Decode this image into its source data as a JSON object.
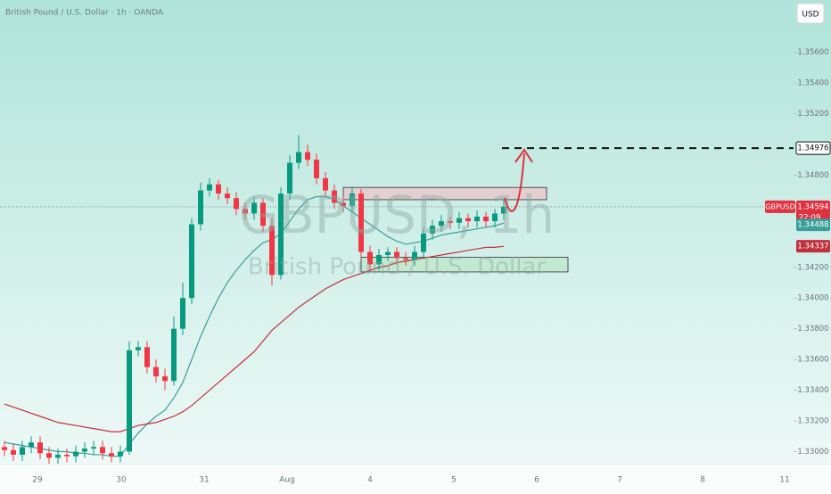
{
  "chart_data": {
    "type": "candlestick",
    "title": "British Pound / U.S. Dollar · 1h · OANDA",
    "watermark": "GBPUSD, 1h",
    "watermark_subtitle": "British Pound / U.S. Dollar",
    "currency": "USD",
    "symbol": "GBPUSD",
    "countdown": "22:09",
    "x_labels": [
      "29",
      "30",
      "31",
      "Aug",
      "4",
      "5",
      "6",
      "7",
      "8",
      "11"
    ],
    "up_color": "#089981",
    "down_color": "#f23645",
    "open": [
      1.3303,
      1.3301,
      1.3298,
      1.3303,
      1.3306,
      1.3299,
      1.3296,
      1.3298,
      1.3297,
      1.33,
      1.3302,
      1.3303,
      1.3299,
      1.3297,
      1.33,
      1.3366,
      1.3368,
      1.3355,
      1.3349,
      1.3346,
      1.338,
      1.34,
      1.3448,
      1.347,
      1.3474,
      1.3468,
      1.3465,
      1.3458,
      1.3455,
      1.3462,
      1.3447,
      1.3415,
      1.3468,
      1.3488,
      1.3495,
      1.349,
      1.3478,
      1.347,
      1.3462,
      1.346,
      1.3468,
      1.343,
      1.3422,
      1.3428,
      1.343,
      1.3426,
      1.3425,
      1.343,
      1.3442,
      1.3447,
      1.345,
      1.3449,
      1.3452,
      1.345,
      1.3453,
      1.345,
      1.3455
    ],
    "high": [
      1.3307,
      1.3305,
      1.3307,
      1.331,
      1.331,
      1.3303,
      1.3302,
      1.3302,
      1.3304,
      1.3306,
      1.3307,
      1.3307,
      1.3303,
      1.3304,
      1.3372,
      1.3372,
      1.3372,
      1.336,
      1.3354,
      1.3388,
      1.341,
      1.3452,
      1.3475,
      1.3478,
      1.3477,
      1.3472,
      1.3469,
      1.3462,
      1.3466,
      1.3465,
      1.3452,
      1.3472,
      1.3493,
      1.3506,
      1.35,
      1.3494,
      1.3482,
      1.3474,
      1.3466,
      1.3472,
      1.3471,
      1.3434,
      1.3432,
      1.3433,
      1.3433,
      1.343,
      1.3434,
      1.3446,
      1.3451,
      1.3454,
      1.3453,
      1.3456,
      1.3455,
      1.3457,
      1.3456,
      1.3458,
      1.3464
    ],
    "low": [
      1.3297,
      1.3294,
      1.3294,
      1.3299,
      1.3295,
      1.3292,
      1.3292,
      1.3293,
      1.3293,
      1.3296,
      1.3298,
      1.3295,
      1.3293,
      1.3293,
      1.3298,
      1.3362,
      1.3351,
      1.3345,
      1.334,
      1.3343,
      1.3376,
      1.3396,
      1.3444,
      1.3466,
      1.3464,
      1.3461,
      1.3454,
      1.3451,
      1.3451,
      1.3443,
      1.3408,
      1.3412,
      1.3464,
      1.3484,
      1.3486,
      1.3474,
      1.3466,
      1.3458,
      1.3456,
      1.3456,
      1.3426,
      1.3418,
      1.3418,
      1.3424,
      1.3422,
      1.3421,
      1.3421,
      1.3426,
      1.3438,
      1.3443,
      1.3445,
      1.3445,
      1.3446,
      1.3446,
      1.3446,
      1.3446,
      1.3451
    ],
    "close": [
      1.3301,
      1.3298,
      1.3303,
      1.3306,
      1.3299,
      1.3296,
      1.3298,
      1.3297,
      1.33,
      1.3302,
      1.3303,
      1.3299,
      1.3297,
      1.33,
      1.3366,
      1.3368,
      1.3355,
      1.3349,
      1.3346,
      1.338,
      1.34,
      1.3448,
      1.347,
      1.3474,
      1.3468,
      1.3465,
      1.3458,
      1.3455,
      1.3462,
      1.3447,
      1.3415,
      1.3468,
      1.3488,
      1.3495,
      1.349,
      1.3478,
      1.347,
      1.3462,
      1.346,
      1.3468,
      1.343,
      1.3422,
      1.3428,
      1.343,
      1.3426,
      1.3425,
      1.343,
      1.3442,
      1.3447,
      1.345,
      1.3449,
      1.3452,
      1.345,
      1.3453,
      1.345,
      1.3455,
      1.34594
    ],
    "last_label": "1.34594",
    "series": [
      {
        "color": "#3a9e9a",
        "last_label": "1.34488",
        "values": [
          1.3306,
          1.3305,
          1.3304,
          1.3303,
          1.3302,
          1.3301,
          1.33,
          1.33,
          1.3299,
          1.3299,
          1.3298,
          1.3298,
          1.3297,
          1.3297,
          1.3305,
          1.3312,
          1.3318,
          1.3323,
          1.3327,
          1.3335,
          1.3345,
          1.336,
          1.3375,
          1.3388,
          1.34,
          1.341,
          1.3418,
          1.3425,
          1.3431,
          1.3436,
          1.3438,
          1.3442,
          1.345,
          1.3458,
          1.3464,
          1.3466,
          1.3466,
          1.3464,
          1.346,
          1.3456,
          1.3452,
          1.3448,
          1.3444,
          1.344,
          1.3437,
          1.3435,
          1.3436,
          1.3437,
          1.3439,
          1.3441,
          1.3442,
          1.3443,
          1.3444,
          1.3445,
          1.3446,
          1.3447,
          1.34488
        ]
      },
      {
        "color": "#c2303d",
        "last_label": "1.34337",
        "values": [
          1.3331,
          1.3329,
          1.3327,
          1.3325,
          1.3323,
          1.3321,
          1.3319,
          1.3318,
          1.3317,
          1.3316,
          1.3315,
          1.3314,
          1.3313,
          1.3313,
          1.3315,
          1.3317,
          1.3318,
          1.3319,
          1.3321,
          1.3323,
          1.3326,
          1.333,
          1.3335,
          1.334,
          1.3345,
          1.335,
          1.3355,
          1.336,
          1.3365,
          1.3372,
          1.3379,
          1.3384,
          1.3389,
          1.3394,
          1.3398,
          1.3402,
          1.3406,
          1.3409,
          1.3412,
          1.3414,
          1.3416,
          1.3418,
          1.342,
          1.3421,
          1.3423,
          1.3424,
          1.3425,
          1.3426,
          1.3427,
          1.3428,
          1.3429,
          1.343,
          1.3431,
          1.3432,
          1.3433,
          1.3433,
          1.34337
        ]
      }
    ],
    "level": {
      "value": 1.34976,
      "label": "1.34976"
    },
    "zones": [
      {
        "low": 1.3464,
        "high": 1.3472,
        "color": "#e8c9cc"
      },
      {
        "low": 1.3417,
        "high": 1.34265,
        "color": "#bfe8cd"
      }
    ],
    "ylim": [
      1.3291,
      1.3594
    ],
    "yticks": [
      {
        "value": 1.33,
        "label": "1.33000"
      },
      {
        "value": 1.332,
        "label": "1.33200"
      },
      {
        "value": 1.334,
        "label": "1.33400"
      },
      {
        "value": 1.336,
        "label": "1.33600"
      },
      {
        "value": 1.338,
        "label": "1.33800"
      },
      {
        "value": 1.34,
        "label": "1.34000"
      },
      {
        "value": 1.342,
        "label": "1.34200"
      },
      {
        "value": 1.348,
        "label": "1.34800"
      },
      {
        "value": 1.352,
        "label": "1.35200"
      },
      {
        "value": 1.354,
        "label": "1.35400"
      },
      {
        "value": 1.356,
        "label": "1.35600"
      }
    ]
  }
}
